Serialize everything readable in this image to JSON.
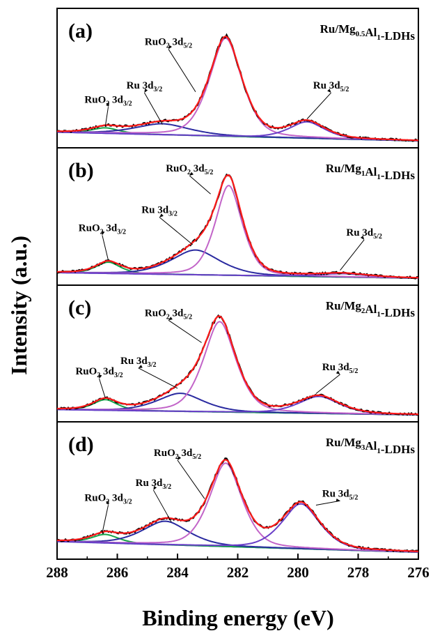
{
  "chart_data": {
    "type": "line",
    "xlabel": "Binding energy (eV)",
    "ylabel": "Intensity (a.u.)",
    "xlim": [
      288,
      276
    ],
    "xticks": [
      288,
      286,
      284,
      282,
      280,
      278,
      276
    ],
    "x_reversed": true,
    "y_ticks_shown": false,
    "colors": {
      "raw": "#000000",
      "fit": "#ff1a1a",
      "ruo2_32": "#16a34a",
      "ru_32": "#2a2aa0",
      "ruo2_52": "#c264c8",
      "ru_52": "#6a3fc8",
      "background": "#2e2eb4"
    },
    "panels": [
      {
        "tag": "(a)",
        "sample": {
          "pre": "Ru/Mg",
          "sub1": "0.5",
          "mid": "Al",
          "sub2": "1",
          "post": "-LDHs"
        },
        "ymax": 1.05,
        "baseline": [
          0.08,
          0.0
        ],
        "peaks": [
          {
            "label": "RuO2 3d3/2",
            "center": 286.4,
            "height": 0.05,
            "width": 0.5,
            "color_key": "ruo2_32"
          },
          {
            "label": "Ru 3d3/2",
            "center": 284.5,
            "height": 0.1,
            "width": 1.0,
            "color_key": "ru_32"
          },
          {
            "label": "RuO2 3d5/2",
            "center": 282.4,
            "height": 0.9,
            "width": 0.6,
            "color_key": "ruo2_52"
          },
          {
            "label": "Ru 3d5/2",
            "center": 279.7,
            "height": 0.15,
            "width": 0.65,
            "color_key": "ru_52"
          }
        ],
        "annotations": [
          {
            "main": "RuO",
            "sub": "2",
            "mid": " 3d",
            "sub2": "3/2",
            "x": 286.3,
            "y": 0.35,
            "peak_x": 286.4,
            "peak_y": 0.13
          },
          {
            "main": "Ru 3d",
            "sub": "",
            "mid": "",
            "sub2": "3/2",
            "x": 285.1,
            "y": 0.48,
            "peak_x": 284.5,
            "peak_y": 0.15
          },
          {
            "main": "RuO",
            "sub": "2",
            "mid": " 3d",
            "sub2": "5/2",
            "x": 284.3,
            "y": 0.88,
            "peak_x": 283.4,
            "peak_y": 0.45
          },
          {
            "main": "Ru 3d",
            "sub": "",
            "mid": "",
            "sub2": "5/2",
            "x": 278.9,
            "y": 0.48,
            "peak_x": 279.7,
            "peak_y": 0.2
          }
        ]
      },
      {
        "tag": "(b)",
        "sample": {
          "pre": "Ru/Mg",
          "sub1": "1",
          "mid": "Al",
          "sub2": "1",
          "post": "-LDHs"
        },
        "ymax": 1.0,
        "baseline": [
          0.05,
          0.0
        ],
        "peaks": [
          {
            "label": "RuO2 3d3/2",
            "center": 286.3,
            "height": 0.1,
            "width": 0.45,
            "color_key": "ruo2_32"
          },
          {
            "label": "Ru 3d3/2",
            "center": 283.4,
            "height": 0.22,
            "width": 0.9,
            "color_key": "ru_32"
          },
          {
            "label": "RuO2 3d5/2",
            "center": 282.3,
            "height": 0.8,
            "width": 0.5,
            "color_key": "ruo2_52"
          },
          {
            "label": "Ru 3d5/2",
            "center": 278.5,
            "height": 0.03,
            "width": 0.9,
            "color_key": "ru_52"
          }
        ],
        "annotations": [
          {
            "main": "RuO",
            "sub": "2",
            "mid": " 3d",
            "sub2": "3/2",
            "x": 286.5,
            "y": 0.42,
            "peak_x": 286.3,
            "peak_y": 0.16
          },
          {
            "main": "Ru 3d",
            "sub": "",
            "mid": "",
            "sub2": "3/2",
            "x": 284.6,
            "y": 0.58,
            "peak_x": 283.5,
            "peak_y": 0.3
          },
          {
            "main": "RuO",
            "sub": "2",
            "mid": " 3d",
            "sub2": "5/2",
            "x": 283.6,
            "y": 0.95,
            "peak_x": 282.9,
            "peak_y": 0.75
          },
          {
            "main": "Ru 3d",
            "sub": "",
            "mid": "",
            "sub2": "5/2",
            "x": 277.8,
            "y": 0.38,
            "peak_x": 278.6,
            "peak_y": 0.07
          }
        ]
      },
      {
        "tag": "(c)",
        "sample": {
          "pre": "Ru/Mg",
          "sub1": "2",
          "mid": "Al",
          "sub2": "1",
          "post": "-LDHs"
        },
        "ymax": 1.05,
        "baseline": [
          0.05,
          0.0
        ],
        "peaks": [
          {
            "label": "RuO2 3d3/2",
            "center": 286.4,
            "height": 0.1,
            "width": 0.45,
            "color_key": "ruo2_32"
          },
          {
            "label": "Ru 3d3/2",
            "center": 283.9,
            "height": 0.17,
            "width": 0.85,
            "color_key": "ru_32"
          },
          {
            "label": "RuO2 3d5/2",
            "center": 282.6,
            "height": 0.85,
            "width": 0.6,
            "color_key": "ruo2_52"
          },
          {
            "label": "Ru 3d5/2",
            "center": 279.3,
            "height": 0.16,
            "width": 0.75,
            "color_key": "ru_52"
          }
        ],
        "annotations": [
          {
            "main": "RuO",
            "sub": "2",
            "mid": " 3d",
            "sub2": "3/2",
            "x": 286.6,
            "y": 0.38,
            "peak_x": 286.4,
            "peak_y": 0.16
          },
          {
            "main": "Ru 3d",
            "sub": "",
            "mid": "",
            "sub2": "3/2",
            "x": 285.3,
            "y": 0.48,
            "peak_x": 284.0,
            "peak_y": 0.25
          },
          {
            "main": "RuO",
            "sub": "2",
            "mid": " 3d",
            "sub2": "5/2",
            "x": 284.3,
            "y": 0.93,
            "peak_x": 283.2,
            "peak_y": 0.68
          },
          {
            "main": "Ru 3d",
            "sub": "",
            "mid": "",
            "sub2": "5/2",
            "x": 278.6,
            "y": 0.42,
            "peak_x": 279.4,
            "peak_y": 0.2
          }
        ]
      },
      {
        "tag": "(d)",
        "sample": {
          "pre": "Ru/Mg",
          "sub1": "3",
          "mid": "Al",
          "sub2": "1",
          "post": "-LDHs"
        },
        "ymax": 1.05,
        "baseline": [
          0.1,
          0.0
        ],
        "peaks": [
          {
            "label": "RuO2 3d3/2",
            "center": 286.4,
            "height": 0.08,
            "width": 0.5,
            "color_key": "ruo2_32"
          },
          {
            "label": "Ru 3d3/2",
            "center": 284.4,
            "height": 0.22,
            "width": 0.85,
            "color_key": "ru_32"
          },
          {
            "label": "RuO2 3d5/2",
            "center": 282.4,
            "height": 0.78,
            "width": 0.6,
            "color_key": "ruo2_52"
          },
          {
            "label": "Ru 3d5/2",
            "center": 279.9,
            "height": 0.42,
            "width": 0.7,
            "color_key": "ru_52"
          }
        ],
        "annotations": [
          {
            "main": "RuO",
            "sub": "2",
            "mid": " 3d",
            "sub2": "3/2",
            "x": 286.3,
            "y": 0.48,
            "peak_x": 286.5,
            "peak_y": 0.18
          },
          {
            "main": "Ru 3d",
            "sub": "",
            "mid": "",
            "sub2": "3/2",
            "x": 284.8,
            "y": 0.62,
            "peak_x": 284.2,
            "peak_y": 0.28
          },
          {
            "main": "RuO",
            "sub": "2",
            "mid": " 3d",
            "sub2": "5/2",
            "x": 284.0,
            "y": 0.9,
            "peak_x": 283.1,
            "peak_y": 0.5
          },
          {
            "main": "Ru 3d",
            "sub": "",
            "mid": "",
            "sub2": "5/2",
            "x": 278.6,
            "y": 0.52,
            "peak_x": 279.4,
            "peak_y": 0.44
          }
        ]
      }
    ]
  }
}
